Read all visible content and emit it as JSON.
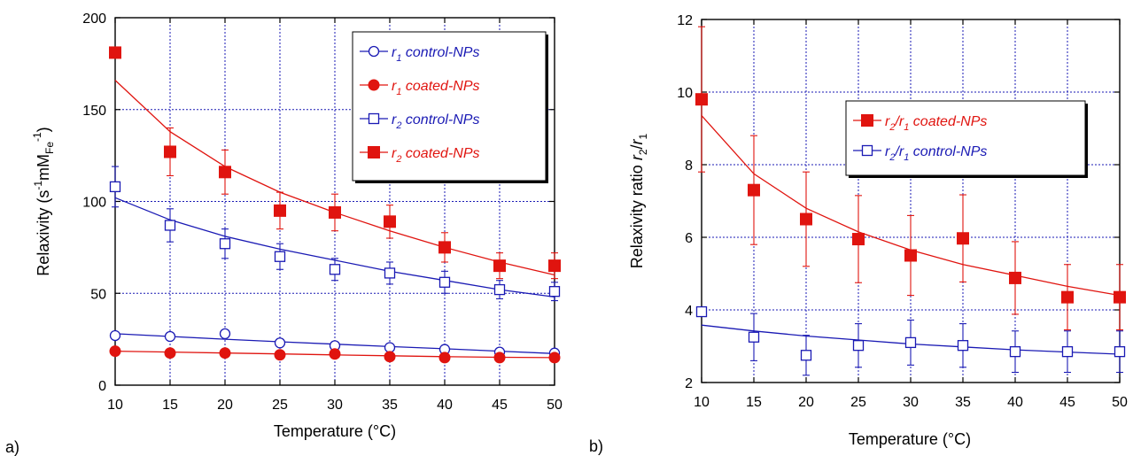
{
  "colors": {
    "red": "#e0140f",
    "blue": "#1a1ab4",
    "grid": "#1a1ab4",
    "axis": "#000000"
  },
  "chart_data": [
    {
      "panel_label": "a)",
      "type": "scatter",
      "xlabel": "Temperature (°C)",
      "ylabel": {
        "text": "Relaxivity (s",
        "sup1": "-1",
        "mid": "mM",
        "sub": "Fe",
        "sup2": "-1",
        "end": ")"
      },
      "xlim": [
        10,
        50
      ],
      "ylim": [
        0,
        200
      ],
      "xticks": [
        "10",
        "15",
        "20",
        "25",
        "30",
        "35",
        "40",
        "45",
        "50"
      ],
      "yticks": [
        "0",
        "50",
        "100",
        "150",
        "200"
      ],
      "grid": true,
      "legend_position": "top-right",
      "x": [
        10,
        15,
        20,
        25,
        30,
        35,
        40,
        45,
        50
      ],
      "series": [
        {
          "legend_main": "r",
          "legend_sub": "1",
          "legend_suffix": " control-NPs",
          "color": "blue",
          "marker": "open-circle",
          "values": [
            27,
            26.5,
            28,
            23,
            21.5,
            20.5,
            19.5,
            18,
            17.5
          ],
          "errors": [
            0,
            0,
            0,
            0,
            0,
            0,
            0,
            0,
            0
          ],
          "fit": [
            28,
            26.5,
            25,
            23.6,
            22.3,
            21,
            19.8,
            18.5,
            17.2
          ]
        },
        {
          "legend_main": "r",
          "legend_sub": "1",
          "legend_suffix": " coated-NPs",
          "color": "red",
          "marker": "filled-circle",
          "values": [
            18.5,
            17.5,
            17.5,
            16.5,
            17,
            15.5,
            15,
            15,
            15
          ],
          "errors": [
            0,
            0,
            0,
            0,
            0,
            0,
            0,
            0,
            0
          ],
          "fit": [
            18.5,
            18,
            17.5,
            17,
            16.5,
            16,
            15.5,
            15.2,
            15
          ]
        },
        {
          "legend_main": "r",
          "legend_sub": "2",
          "legend_suffix": " control-NPs",
          "color": "blue",
          "marker": "open-square",
          "values": [
            108,
            87,
            77,
            70,
            63,
            61,
            56,
            52,
            51
          ],
          "errors": [
            11,
            9,
            8,
            7,
            6,
            6,
            6,
            5,
            5
          ],
          "fit": [
            102,
            90,
            81,
            74,
            68,
            62,
            57,
            52,
            48
          ]
        },
        {
          "legend_main": "r",
          "legend_sub": "2",
          "legend_suffix": " coated-NPs",
          "color": "red",
          "marker": "filled-square",
          "values": [
            181,
            127,
            116,
            95,
            94,
            89,
            75,
            65,
            65
          ],
          "errors": [
            0,
            13,
            12,
            10,
            10,
            9,
            8,
            7,
            7
          ],
          "fit": [
            166,
            138,
            119,
            105,
            94,
            84,
            75,
            67,
            60
          ]
        }
      ]
    },
    {
      "panel_label": "b)",
      "type": "scatter",
      "xlabel": "Temperature (°C)",
      "ylabel": {
        "text": "Relaxivity ratio ",
        "r2": "r",
        "r2sub": "2",
        "slash": "/",
        "r1": "r",
        "r1sub": "1"
      },
      "xlim": [
        10,
        50
      ],
      "ylim": [
        2,
        12
      ],
      "xticks": [
        "10",
        "15",
        "20",
        "25",
        "30",
        "35",
        "40",
        "45",
        "50"
      ],
      "yticks": [
        "2",
        "4",
        "6",
        "8",
        "10",
        "12"
      ],
      "grid": true,
      "legend_position": "top-right",
      "x": [
        10,
        15,
        20,
        25,
        30,
        35,
        40,
        45,
        50
      ],
      "series": [
        {
          "legend_main": "r",
          "legend_sub": "2",
          "legend_mid": "/",
          "legend_main2": "r",
          "legend_sub2": "1",
          "legend_suffix": " coated-NPs",
          "color": "red",
          "marker": "filled-square",
          "values": [
            9.8,
            7.3,
            6.5,
            5.95,
            5.5,
            5.97,
            4.88,
            4.35,
            4.35
          ],
          "errors": [
            2,
            1.5,
            1.3,
            1.2,
            1.1,
            1.2,
            1,
            0.9,
            0.9
          ],
          "fit": [
            9.35,
            7.75,
            6.8,
            6.15,
            5.65,
            5.25,
            4.95,
            4.65,
            4.4
          ]
        },
        {
          "legend_main": "r",
          "legend_sub": "2",
          "legend_mid": "/",
          "legend_main2": "r",
          "legend_sub2": "1",
          "legend_suffix": " control-NPs",
          "color": "blue",
          "marker": "open-square",
          "values": [
            3.95,
            3.25,
            2.75,
            3.02,
            3.1,
            3.02,
            2.85,
            2.85,
            2.85
          ],
          "errors": [
            0,
            0.65,
            0.55,
            0.6,
            0.62,
            0.6,
            0.57,
            0.57,
            0.57
          ],
          "fit": [
            3.58,
            3.42,
            3.28,
            3.17,
            3.06,
            2.98,
            2.9,
            2.84,
            2.78
          ]
        }
      ]
    }
  ]
}
